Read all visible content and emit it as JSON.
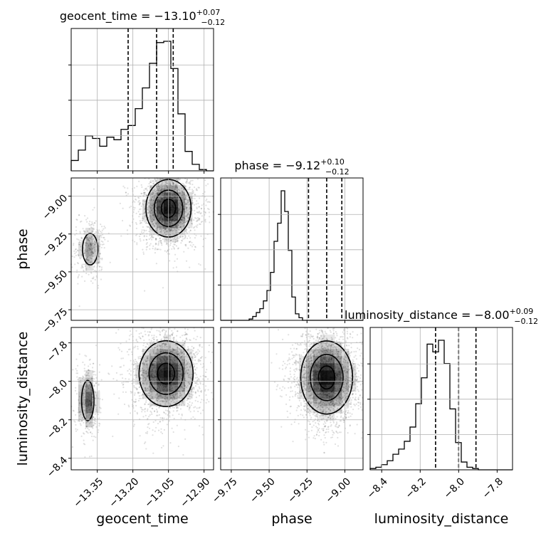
{
  "chart_data": {
    "type": "corner",
    "parameters": [
      {
        "name": "geocent_time",
        "xlabel": "geocent_time",
        "ylabel": "",
        "title_prefix": "geocent_time = ",
        "median": "−13.10",
        "plus": "+0.07",
        "minus": "−0.12",
        "range": [
          -13.46,
          -12.86
        ],
        "ticks": [
          -13.35,
          -13.2,
          -13.05,
          -12.9
        ],
        "tick_labels": [
          "−13.35",
          "−13.20",
          "−13.05",
          "−12.90"
        ],
        "quantiles": [
          -13.22,
          -13.1,
          -13.03
        ],
        "hist_edges_start": -13.46,
        "hist_bin_width": 0.03,
        "hist_values": [
          0.08,
          0.16,
          0.27,
          0.25,
          0.19,
          0.26,
          0.24,
          0.32,
          0.35,
          0.48,
          0.64,
          0.83,
          0.99,
          1.0,
          0.79,
          0.44,
          0.15,
          0.05,
          0.01,
          0.0
        ]
      },
      {
        "name": "phase",
        "xlabel": "phase",
        "ylabel": "phase",
        "title_prefix": "phase = ",
        "median": "−9.12",
        "plus": "+0.10",
        "minus": "−0.12",
        "range": [
          -9.82,
          -8.88
        ],
        "ticks": [
          -9.75,
          -9.5,
          -9.25,
          -9.0
        ],
        "tick_labels": [
          "−9.75",
          "−9.50",
          "−9.25",
          "−9.00"
        ],
        "quantiles": [
          -9.24,
          -9.12,
          -9.02
        ],
        "hist_edges_start": -9.82,
        "hist_bin_width": 0.0235,
        "hist_values": [
          0.0,
          0.0,
          0.0,
          0.0,
          0.0,
          0.0,
          0.0,
          0.0,
          0.01,
          0.03,
          0.06,
          0.09,
          0.15,
          0.23,
          0.37,
          0.61,
          0.75,
          1.0,
          0.84,
          0.54,
          0.18,
          0.05,
          0.02,
          0.0,
          0.0
        ]
      },
      {
        "name": "luminosity_distance",
        "xlabel": "luminosity_distance",
        "ylabel": "luminosity_distance",
        "title_prefix": "luminosity_distance = ",
        "median": "−8.00",
        "plus": "+0.09",
        "minus": "−0.12",
        "range": [
          -8.46,
          -7.72
        ],
        "ticks": [
          -8.4,
          -8.2,
          -8.0,
          -7.8
        ],
        "tick_labels": [
          "−8.4",
          "−8.2",
          "−8.0",
          "−7.8"
        ],
        "quantiles": [
          -8.12,
          -8.0,
          -7.91
        ],
        "hist_edges_start": -8.46,
        "hist_bin_width": 0.0296,
        "hist_values": [
          0.01,
          0.02,
          0.04,
          0.07,
          0.12,
          0.16,
          0.22,
          0.33,
          0.51,
          0.71,
          0.97,
          0.91,
          1.0,
          0.82,
          0.47,
          0.21,
          0.06,
          0.02,
          0.01,
          0.0,
          0.0,
          0.0,
          0.0,
          0.0,
          0.0
        ]
      }
    ],
    "joint_2d": [
      {
        "x": "geocent_time",
        "y": "phase",
        "modes": [
          {
            "mx": -13.05,
            "my": -9.08,
            "sx": 0.05,
            "sy": 0.1,
            "w": 0.85
          },
          {
            "mx": -13.38,
            "my": -9.35,
            "sx": 0.025,
            "sy": 0.08,
            "w": 0.15
          }
        ]
      },
      {
        "x": "geocent_time",
        "y": "luminosity_distance",
        "modes": [
          {
            "mx": -13.06,
            "my": -7.96,
            "sx": 0.06,
            "sy": 0.09,
            "w": 0.82
          },
          {
            "mx": -13.39,
            "my": -8.1,
            "sx": 0.02,
            "sy": 0.08,
            "w": 0.18
          }
        ]
      },
      {
        "x": "phase",
        "y": "luminosity_distance",
        "modes": [
          {
            "mx": -9.12,
            "my": -7.98,
            "sx": 0.09,
            "sy": 0.1,
            "w": 1.0
          }
        ]
      }
    ],
    "grid": true,
    "legend": "none"
  }
}
